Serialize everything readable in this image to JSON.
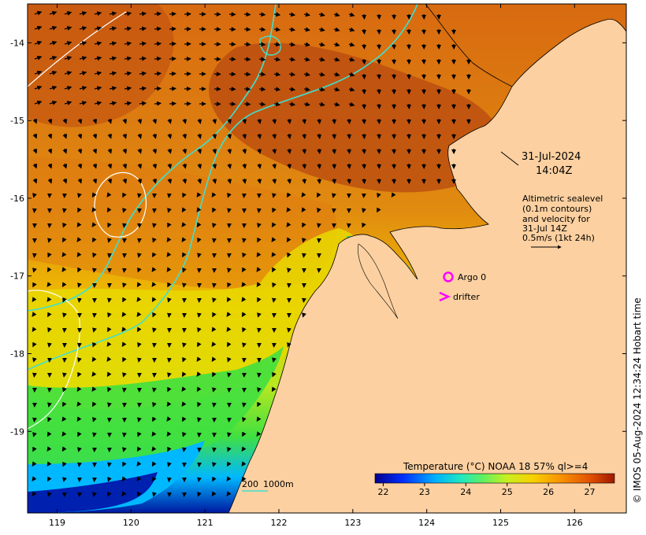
{
  "map": {
    "type": "sea-surface-temperature-map",
    "lon_range": [
      118.6,
      126.7
    ],
    "lat_range": [
      -20.05,
      -13.5
    ],
    "x_ticks": [
      "119",
      "120",
      "121",
      "122",
      "123",
      "124",
      "125",
      "126"
    ],
    "y_ticks": [
      "-14",
      "-15",
      "-16",
      "-17",
      "-18",
      "-19"
    ],
    "timestamp": {
      "date": "31-Jul-2024",
      "time": "14:04Z"
    },
    "altimetry_note": [
      "Altimetric sealevel",
      "(0.1m contours)",
      "and velocity for",
      "31-Jul 14Z",
      "0.5m/s (1kt 24h)"
    ],
    "legend": {
      "argo_label": "Argo 0",
      "drifter_label": "drifter"
    },
    "bathymetry_label": {
      "depth_a": "200",
      "depth_b": "1000m"
    },
    "colorbar": {
      "title": "Temperature (°C) NOAA 18 57% ql>=4",
      "ticks": [
        "22",
        "23",
        "24",
        "25",
        "26",
        "27"
      ],
      "range": [
        21.8,
        27.6
      ],
      "colors": [
        "#00008f",
        "#0030ff",
        "#00b0ff",
        "#20e8c0",
        "#60f060",
        "#c8f020",
        "#f8d000",
        "#f89000",
        "#e05000",
        "#a01800"
      ]
    },
    "land_color": "#fcd0a0",
    "stamp": "© IMOS 05-Aug-2024 12:34:24 Hobart time"
  }
}
